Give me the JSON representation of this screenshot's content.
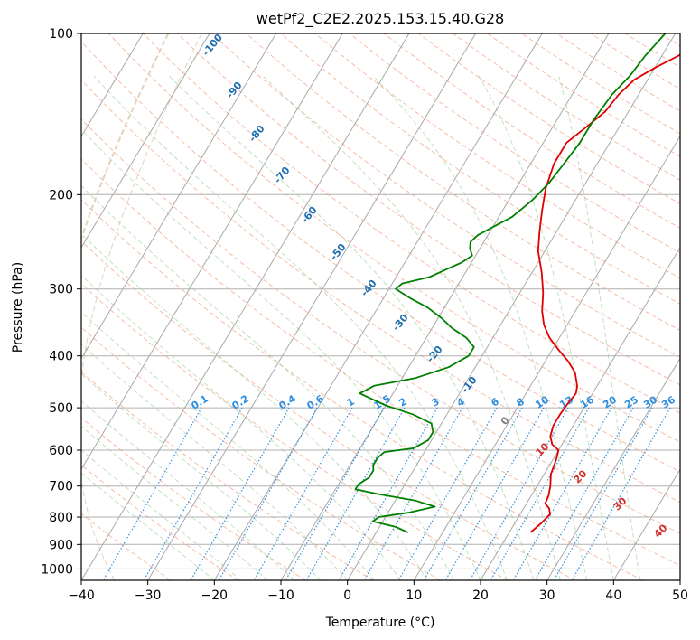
{
  "chart_data": {
    "type": "line",
    "title": "wetPf2_C2E2.2025.153.15.40.G28",
    "xlabel": "Temperature (°C)",
    "ylabel": "Pressure (hPa)",
    "xlim": [
      -40,
      50
    ],
    "ylim": [
      1050,
      100
    ],
    "y_scale": "log",
    "grid": true,
    "x_ticks": [
      -40,
      -30,
      -20,
      -10,
      0,
      10,
      20,
      30,
      40,
      50
    ],
    "y_ticks": [
      100,
      200,
      300,
      400,
      500,
      600,
      700,
      800,
      900,
      1000
    ],
    "series": [
      {
        "color": "#e00000",
        "points": [
          [
            23.2,
            855
          ],
          [
            24.0,
            820
          ],
          [
            24.5,
            790
          ],
          [
            23.8,
            770
          ],
          [
            22.8,
            755
          ],
          [
            22.6,
            730
          ],
          [
            22.0,
            700
          ],
          [
            21.0,
            665
          ],
          [
            20.5,
            625
          ],
          [
            20.0,
            600
          ],
          [
            18.5,
            585
          ],
          [
            17.5,
            565
          ],
          [
            17.0,
            540
          ],
          [
            17.0,
            515
          ],
          [
            17.2,
            490
          ],
          [
            17.5,
            470
          ],
          [
            17.0,
            455
          ],
          [
            15.5,
            430
          ],
          [
            13.5,
            410
          ],
          [
            11.0,
            390
          ],
          [
            8.5,
            370
          ],
          [
            6.5,
            350
          ],
          [
            5.0,
            330
          ],
          [
            3.5,
            305
          ],
          [
            1.5,
            280
          ],
          [
            -1.0,
            255
          ],
          [
            -2.5,
            235
          ],
          [
            -4.0,
            215
          ],
          [
            -5.5,
            195
          ],
          [
            -6.5,
            175
          ],
          [
            -6.5,
            160
          ],
          [
            -5.0,
            150
          ],
          [
            -3.5,
            140
          ],
          [
            -3.0,
            130
          ],
          [
            -2.0,
            122
          ],
          [
            0.0,
            116
          ],
          [
            2.5,
            110
          ],
          [
            4.0,
            104
          ],
          [
            5.0,
            100
          ]
        ]
      },
      {
        "color": "#008000",
        "points": [
          [
            4.8,
            855
          ],
          [
            2.5,
            835
          ],
          [
            -1.5,
            815
          ],
          [
            -1.0,
            800
          ],
          [
            3.0,
            785
          ],
          [
            6.5,
            765
          ],
          [
            3.0,
            745
          ],
          [
            -3.0,
            725
          ],
          [
            -7.0,
            710
          ],
          [
            -7.0,
            695
          ],
          [
            -6.0,
            675
          ],
          [
            -6.0,
            655
          ],
          [
            -6.5,
            640
          ],
          [
            -6.5,
            620
          ],
          [
            -6.0,
            605
          ],
          [
            -2.0,
            595
          ],
          [
            -0.5,
            575
          ],
          [
            -0.5,
            555
          ],
          [
            -1.5,
            535
          ],
          [
            -5.0,
            515
          ],
          [
            -10.0,
            495
          ],
          [
            -15.0,
            470
          ],
          [
            -13.5,
            455
          ],
          [
            -8.0,
            440
          ],
          [
            -4.0,
            420
          ],
          [
            -2.0,
            400
          ],
          [
            -2.0,
            385
          ],
          [
            -4.0,
            370
          ],
          [
            -7.0,
            355
          ],
          [
            -9.5,
            340
          ],
          [
            -12.5,
            325
          ],
          [
            -16.0,
            312
          ],
          [
            -19.0,
            300
          ],
          [
            -18.5,
            293
          ],
          [
            -15.0,
            285
          ],
          [
            -13.0,
            275
          ],
          [
            -11.5,
            268
          ],
          [
            -10.5,
            260
          ],
          [
            -11.5,
            252
          ],
          [
            -12.0,
            245
          ],
          [
            -11.5,
            238
          ],
          [
            -10.0,
            230
          ],
          [
            -8.0,
            220
          ],
          [
            -6.5,
            205
          ],
          [
            -5.5,
            190
          ],
          [
            -5.0,
            175
          ],
          [
            -4.5,
            160
          ],
          [
            -4.5,
            145
          ],
          [
            -4.0,
            130
          ],
          [
            -3.0,
            120
          ],
          [
            -2.5,
            110
          ],
          [
            -1.5,
            100
          ]
        ]
      }
    ],
    "mixing_ratio_labels": [
      "0.1",
      "0.2",
      "0.4",
      "0.6",
      "1",
      "1.5",
      "2",
      "3",
      "4",
      "6",
      "8",
      "10",
      "13",
      "16",
      "20",
      "25",
      "30",
      "36"
    ],
    "dry_adiabat_labels": [
      "-100",
      "-90",
      "-80",
      "-70",
      "-60",
      "-50",
      "-40",
      "-30",
      "-20",
      "-10",
      "0"
    ],
    "moist_adiabat_labels": [
      "10",
      "20",
      "30",
      "40"
    ]
  }
}
